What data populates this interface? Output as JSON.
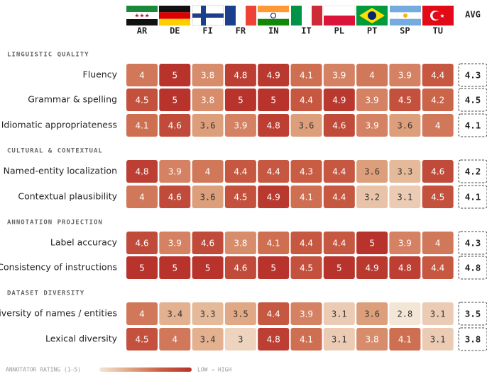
{
  "chart_data": {
    "type": "heatmap",
    "columns": [
      "AR",
      "DE",
      "FI",
      "FR",
      "IN",
      "IT",
      "PL",
      "PT",
      "SP",
      "TU"
    ],
    "avg_label": "AVG",
    "colors": [
      "#f3e6d6",
      "#dfa580",
      "#c95f45",
      "#b8332c"
    ],
    "groups": [
      {
        "name": "LINGUISTIC QUALITY",
        "rows": [
          {
            "label": "Fluency",
            "values": [
              4,
              5,
              3.8,
              4.8,
              4.9,
              4.1,
              3.9,
              4,
              3.9,
              4.4
            ],
            "avg": 4.3
          },
          {
            "label": "Grammar & spelling",
            "values": [
              4.5,
              5,
              3.8,
              5,
              5,
              4.4,
              4.9,
              3.9,
              4.5,
              4.2
            ],
            "avg": 4.5
          },
          {
            "label": "Idiomatic appropriateness",
            "values": [
              4.1,
              4.6,
              3.6,
              3.9,
              4.8,
              3.6,
              4.6,
              3.9,
              3.6,
              4
            ],
            "avg": 4.1
          }
        ]
      },
      {
        "name": "CULTURAL & CONTEXTUAL",
        "rows": [
          {
            "label": "Named-entity localization",
            "values": [
              4.8,
              3.9,
              4,
              4.4,
              4.4,
              4.3,
              4.4,
              3.6,
              3.3,
              4.6
            ],
            "avg": 4.2
          },
          {
            "label": "Contextual plausibility",
            "values": [
              4,
              4.6,
              3.6,
              4.5,
              4.9,
              4.1,
              4.4,
              3.2,
              3.1,
              4.5
            ],
            "avg": 4.1
          }
        ]
      },
      {
        "name": "ANNOTATION PROJECTION",
        "rows": [
          {
            "label": "Label accuracy",
            "values": [
              4.6,
              3.9,
              4.6,
              3.8,
              4.1,
              4.4,
              4.4,
              5,
              3.9,
              4
            ],
            "avg": 4.3
          },
          {
            "label": "Consistency of instructions",
            "values": [
              5,
              5,
              5,
              4.6,
              5,
              4.5,
              5,
              4.9,
              4.8,
              4.4
            ],
            "avg": 4.8
          }
        ]
      },
      {
        "name": "DATASET DIVERSITY",
        "rows": [
          {
            "label": "Diversity of names / entities",
            "values": [
              4,
              3.4,
              3.3,
              3.5,
              4.4,
              3.9,
              3.1,
              3.6,
              2.8,
              3.1
            ],
            "avg": 3.5
          },
          {
            "label": "Lexical diversity",
            "values": [
              4.5,
              4,
              3.4,
              3,
              4.8,
              4.1,
              3.1,
              3.8,
              4.1,
              3.1
            ],
            "avg": 3.8
          }
        ]
      }
    ],
    "legend_label": "ANNOTATOR RATING (1–5)",
    "legend_range_label": "LOW → HIGH"
  }
}
